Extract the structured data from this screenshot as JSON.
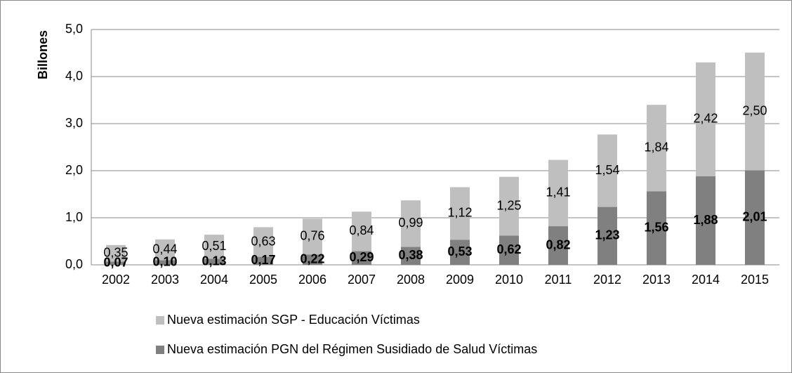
{
  "chart_data": {
    "type": "stacked_bar",
    "y_axis_label": "Billones",
    "categories": [
      "2002",
      "2003",
      "2004",
      "2005",
      "2006",
      "2007",
      "2008",
      "2009",
      "2010",
      "2011",
      "2012",
      "2013",
      "2014",
      "2015"
    ],
    "series": [
      {
        "name": "Nueva estimación PGN del Régimen Susidiado de Salud Víctimas",
        "color": "#808080",
        "values": [
          0.07,
          0.1,
          0.13,
          0.17,
          0.22,
          0.29,
          0.38,
          0.53,
          0.62,
          0.82,
          1.23,
          1.56,
          1.88,
          2.01
        ],
        "value_labels": [
          "0,07",
          "0,10",
          "0,13",
          "0,17",
          "0,22",
          "0,29",
          "0,38",
          "0,53",
          "0,62",
          "0,82",
          "1,23",
          "1,56",
          "1,88",
          "2,01"
        ]
      },
      {
        "name": "Nueva estimación SGP - Educación Víctimas",
        "color": "#bfbfbf",
        "values": [
          0.35,
          0.44,
          0.51,
          0.63,
          0.76,
          0.84,
          0.99,
          1.12,
          1.25,
          1.41,
          1.54,
          1.84,
          2.42,
          2.5
        ],
        "value_labels": [
          "0,35",
          "0,44",
          "0,51",
          "0,63",
          "0,76",
          "0,84",
          "0,99",
          "1,12",
          "1,25",
          "1,41",
          "1,54",
          "1,84",
          "2,42",
          "2,50"
        ]
      }
    ],
    "ylim": [
      0,
      5
    ],
    "yticks": [
      {
        "value": 0,
        "label": "0,0"
      },
      {
        "value": 1,
        "label": "1,0"
      },
      {
        "value": 2,
        "label": "2,0"
      },
      {
        "value": 3,
        "label": "3,0"
      },
      {
        "value": 4,
        "label": "4,0"
      },
      {
        "value": 5,
        "label": "5,0"
      }
    ],
    "grid": true
  }
}
